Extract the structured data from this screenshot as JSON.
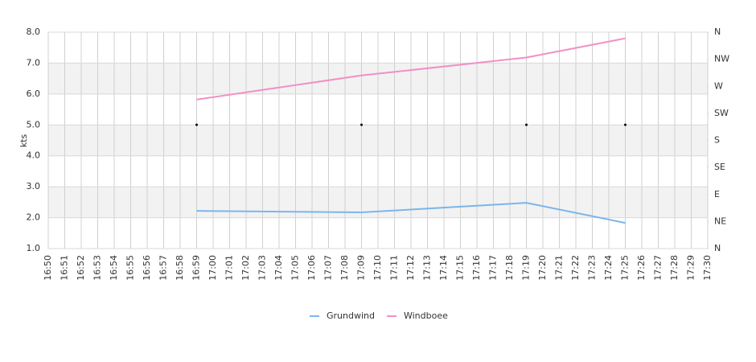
{
  "chart_data": {
    "type": "line",
    "y_label": "kts",
    "xlim": [
      "16:50",
      "17:30"
    ],
    "xticks": [
      "16:50",
      "16:51",
      "16:52",
      "16:53",
      "16:54",
      "16:55",
      "16:56",
      "16:57",
      "16:58",
      "16:59",
      "17:00",
      "17:01",
      "17:02",
      "17:03",
      "17:04",
      "17:05",
      "17:06",
      "17:07",
      "17:08",
      "17:09",
      "17:10",
      "17:11",
      "17:12",
      "17:13",
      "17:14",
      "17:15",
      "17:16",
      "17:17",
      "17:18",
      "17:19",
      "17:20",
      "17:21",
      "17:22",
      "17:23",
      "17:24",
      "17:25",
      "17:26",
      "17:27",
      "17:28",
      "17:29",
      "17:30"
    ],
    "ylim": [
      1.0,
      8.0
    ],
    "yticks": [
      {
        "value": 1,
        "label": "1.0"
      },
      {
        "value": 2,
        "label": "2.0"
      },
      {
        "value": 3,
        "label": "3.0"
      },
      {
        "value": 4,
        "label": "4.0"
      },
      {
        "value": 5,
        "label": "5.0"
      },
      {
        "value": 6,
        "label": "6.0"
      },
      {
        "value": 7,
        "label": "7.0"
      },
      {
        "value": 8,
        "label": "8.0"
      }
    ],
    "y2lim": [
      0,
      360
    ],
    "y2ticks": [
      {
        "value": 0,
        "label": "N"
      },
      {
        "value": 45,
        "label": "NE"
      },
      {
        "value": 90,
        "label": "E"
      },
      {
        "value": 135,
        "label": "SE"
      },
      {
        "value": 180,
        "label": "S"
      },
      {
        "value": 225,
        "label": "SW"
      },
      {
        "value": 270,
        "label": "W"
      },
      {
        "value": 315,
        "label": "NW"
      },
      {
        "value": 360,
        "label": "N"
      }
    ],
    "x": [
      "16:59",
      "17:09",
      "17:19",
      "17:25"
    ],
    "series": [
      {
        "name": "Grundwind",
        "color": "#7cb5ec",
        "values": [
          2.22,
          2.17,
          2.48,
          1.83
        ]
      },
      {
        "name": "Windboee",
        "color": "#f28fc5",
        "values": [
          5.82,
          6.6,
          7.18,
          7.8
        ]
      },
      {
        "color": "#000000",
        "axis": "y2",
        "marker": "dot",
        "values": [
          206,
          206,
          206,
          206
        ]
      }
    ]
  }
}
